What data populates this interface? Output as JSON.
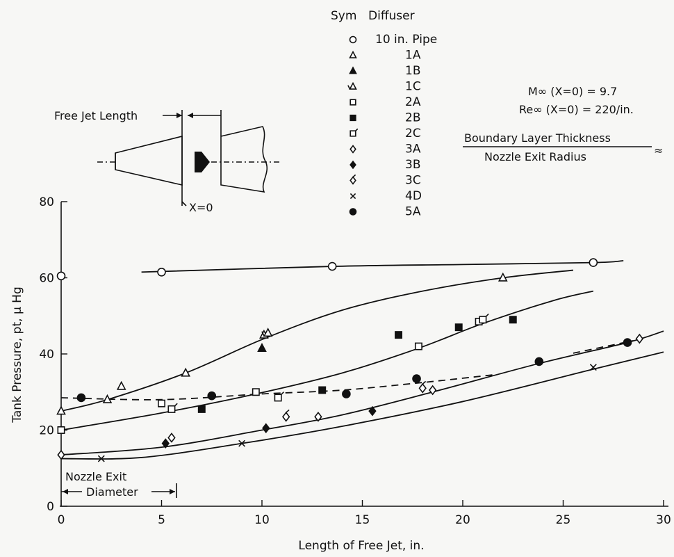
{
  "chart_data": {
    "type": "scatter",
    "xlabel": "Length of Free Jet, in.",
    "ylabel": "Tank Pressure, pt, μ Hg",
    "xlim": [
      0,
      30
    ],
    "ylim": [
      0,
      80
    ],
    "x_ticks": [
      "0",
      "5",
      "10",
      "15",
      "20",
      "25",
      "30"
    ],
    "y_ticks": [
      "0",
      "20",
      "40",
      "60",
      "80"
    ],
    "grid": false,
    "legend": {
      "placement": "top-center",
      "header_sym": "Sym",
      "header_diffuser": "Diffuser"
    },
    "conditions": {
      "mach": "M∞ (X=0) = 9.7",
      "reynolds": "Re∞ (X=0) = 220/in.",
      "ratio_numerator": "Boundary Layer Thickness",
      "ratio_denominator": "Nozzle Exit Radius",
      "ratio_symbol": "≈"
    },
    "sketch": {
      "free_jet_label": "Free Jet Length",
      "x0_label": "X=0"
    },
    "nozzle_annotation": [
      "Nozzle Exit",
      "Diameter"
    ],
    "series": [
      {
        "name": "10 in. Pipe",
        "marker": "circle-open",
        "points": [
          [
            0,
            60.5
          ],
          [
            5,
            61.5
          ],
          [
            13.5,
            63
          ],
          [
            26.5,
            64
          ]
        ]
      },
      {
        "name": "1A",
        "marker": "triangle-open",
        "points": [
          [
            0,
            25
          ],
          [
            2.3,
            28
          ],
          [
            3,
            31.5
          ],
          [
            6.2,
            35
          ],
          [
            10.1,
            45
          ],
          [
            22,
            60
          ]
        ]
      },
      {
        "name": "1B",
        "marker": "triangle-filled",
        "points": [
          [
            10,
            41.5
          ]
        ]
      },
      {
        "name": "1C",
        "marker": "triangle-tick",
        "points": [
          [
            10.3,
            45.5
          ]
        ]
      },
      {
        "name": "2A",
        "marker": "square-open",
        "points": [
          [
            0,
            20
          ],
          [
            5,
            27
          ],
          [
            9.7,
            30
          ],
          [
            17.8,
            42
          ],
          [
            20.8,
            48.5
          ]
        ]
      },
      {
        "name": "2B",
        "marker": "square-filled",
        "points": [
          [
            7,
            25.5
          ],
          [
            13,
            30.5
          ],
          [
            16.8,
            45
          ],
          [
            19.8,
            47
          ],
          [
            22.5,
            49
          ]
        ]
      },
      {
        "name": "2C",
        "marker": "square-tick",
        "points": [
          [
            5.5,
            25.5
          ],
          [
            10.8,
            28.5
          ],
          [
            21,
            49
          ]
        ]
      },
      {
        "name": "3A",
        "marker": "diamond-open",
        "points": [
          [
            0,
            13.5
          ],
          [
            5.5,
            18
          ],
          [
            12.8,
            23.5
          ],
          [
            18.5,
            30.5
          ],
          [
            28.8,
            44
          ]
        ]
      },
      {
        "name": "3B",
        "marker": "diamond-filled",
        "points": [
          [
            5.2,
            16.5
          ],
          [
            10.2,
            20.5
          ],
          [
            15.5,
            25
          ]
        ]
      },
      {
        "name": "3C",
        "marker": "diamond-tick",
        "points": [
          [
            11.2,
            23.5
          ],
          [
            18,
            31
          ]
        ]
      },
      {
        "name": "4D",
        "marker": "x",
        "points": [
          [
            2,
            12.5
          ],
          [
            9,
            16.5
          ],
          [
            26.5,
            36.5
          ]
        ]
      },
      {
        "name": "5A",
        "marker": "circle-filled",
        "points": [
          [
            1,
            28.5
          ],
          [
            7.5,
            29
          ],
          [
            14.2,
            29.5
          ],
          [
            17.7,
            33.5
          ],
          [
            23.8,
            38
          ],
          [
            28.2,
            43
          ]
        ]
      }
    ],
    "fit_curves": [
      {
        "style": "solid",
        "points": [
          [
            4,
            61.5
          ],
          [
            13.5,
            63
          ],
          [
            20,
            63.5
          ],
          [
            26.5,
            64
          ],
          [
            28,
            64.5
          ]
        ]
      },
      {
        "style": "solid",
        "points": [
          [
            0,
            25
          ],
          [
            2.3,
            28
          ],
          [
            6.2,
            35
          ],
          [
            10.1,
            44
          ],
          [
            14,
            51.5
          ],
          [
            18,
            56.5
          ],
          [
            22,
            60
          ],
          [
            25.5,
            62
          ]
        ]
      },
      {
        "style": "solid",
        "points": [
          [
            0,
            20
          ],
          [
            5,
            24.5
          ],
          [
            9.7,
            29.5
          ],
          [
            14,
            35
          ],
          [
            17.8,
            41.5
          ],
          [
            21,
            48
          ],
          [
            24.5,
            54
          ],
          [
            26.5,
            56.5
          ]
        ]
      },
      {
        "style": "solid",
        "points": [
          [
            0,
            13.5
          ],
          [
            5,
            15.5
          ],
          [
            10,
            20
          ],
          [
            14,
            24
          ],
          [
            18.5,
            30
          ],
          [
            23.8,
            37.5
          ],
          [
            28.2,
            43
          ],
          [
            30,
            46
          ]
        ]
      },
      {
        "style": "solid",
        "points": [
          [
            0,
            12.5
          ],
          [
            4,
            12.8
          ],
          [
            9,
            16.5
          ],
          [
            14,
            21
          ],
          [
            20,
            27.5
          ],
          [
            26.5,
            36
          ],
          [
            30,
            40.5
          ]
        ]
      },
      {
        "style": "dashed",
        "points": [
          [
            0,
            28.5
          ],
          [
            5,
            28
          ],
          [
            10,
            29.5
          ],
          [
            14,
            30.5
          ],
          [
            18,
            32.5
          ],
          [
            21.5,
            34.5
          ]
        ]
      },
      {
        "style": "dashed",
        "points": [
          [
            25.5,
            40.2
          ],
          [
            28.5,
            43.5
          ]
        ]
      }
    ]
  }
}
